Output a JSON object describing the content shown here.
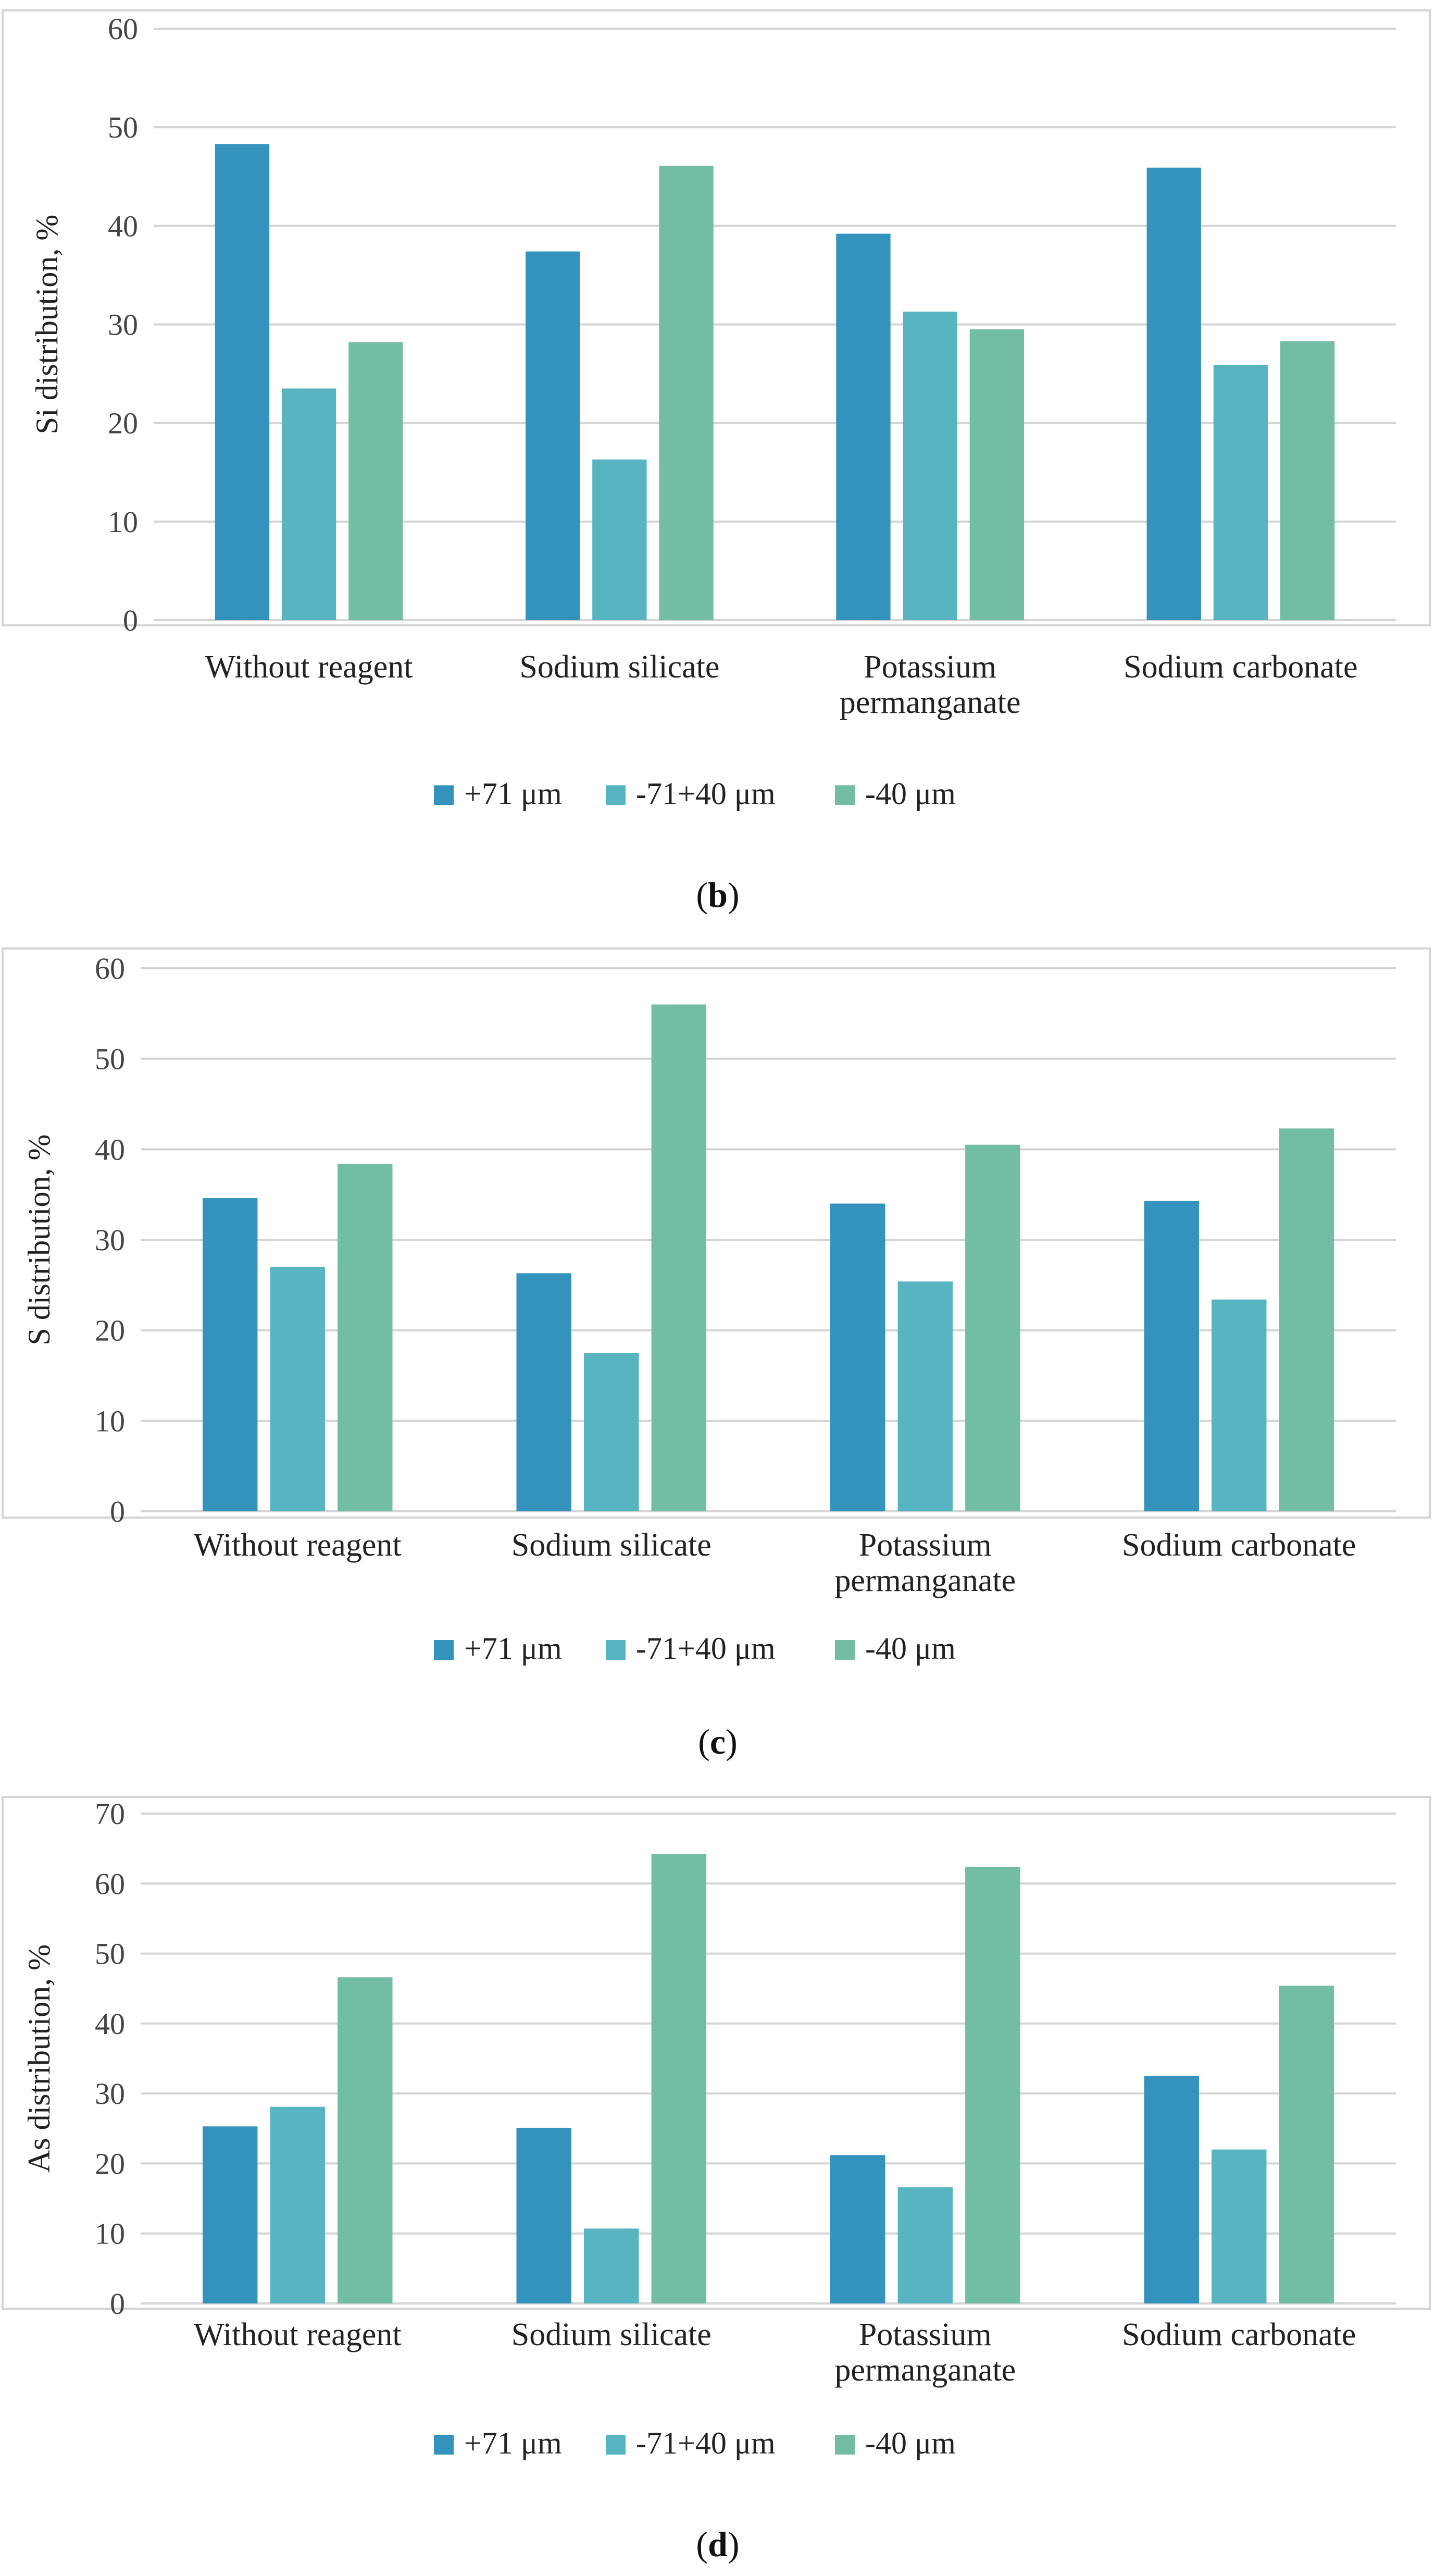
{
  "colors": {
    "s1": "#3493bd",
    "s2": "#59b4c1",
    "s3": "#74bda5"
  },
  "chart_data": [
    {
      "type": "bar",
      "panel": "b",
      "title": "",
      "xlabel": "",
      "ylabel": "Si distribution, %",
      "ylim": [
        0,
        60
      ],
      "yticks": [
        "0",
        "10",
        "20",
        "30",
        "40",
        "50",
        "60"
      ],
      "categories": [
        [
          "Without reagent"
        ],
        [
          "Sodium silicate"
        ],
        [
          "Potassium",
          "permanganate"
        ],
        [
          "Sodium carbonate"
        ]
      ],
      "series": [
        {
          "name": "+71 μm",
          "values": [
            48.3,
            37.4,
            39.2,
            45.9
          ]
        },
        {
          "name": "-71+40 μm",
          "values": [
            23.5,
            16.3,
            31.3,
            25.9
          ]
        },
        {
          "name": "-40 μm",
          "values": [
            28.2,
            46.1,
            29.5,
            28.3
          ]
        }
      ],
      "legend": "bottom"
    },
    {
      "type": "bar",
      "panel": "c",
      "title": "",
      "xlabel": "",
      "ylabel": "S distribution, %",
      "ylim": [
        0,
        60
      ],
      "yticks": [
        "0",
        "10",
        "20",
        "30",
        "40",
        "50",
        "60"
      ],
      "categories": [
        [
          "Without reagent"
        ],
        [
          "Sodium silicate"
        ],
        [
          "Potassium",
          "permanganate"
        ],
        [
          "Sodium carbonate"
        ]
      ],
      "series": [
        {
          "name": "+71 μm",
          "values": [
            34.6,
            26.3,
            34.0,
            34.3
          ]
        },
        {
          "name": "-71+40 μm",
          "values": [
            27.0,
            17.5,
            25.4,
            23.4
          ]
        },
        {
          "name": "-40 μm",
          "values": [
            38.4,
            56.0,
            40.5,
            42.3
          ]
        }
      ],
      "legend": "bottom"
    },
    {
      "type": "bar",
      "panel": "d",
      "title": "",
      "xlabel": "",
      "ylabel": "As distribution, %",
      "ylim": [
        0,
        70
      ],
      "yticks": [
        "0",
        "10",
        "20",
        "30",
        "40",
        "50",
        "60",
        "70"
      ],
      "categories": [
        [
          "Without reagent"
        ],
        [
          "Sodium silicate"
        ],
        [
          "Potassium",
          "permanganate"
        ],
        [
          "Sodium carbonate"
        ]
      ],
      "series": [
        {
          "name": "+71 μm",
          "values": [
            25.3,
            25.1,
            21.2,
            32.5
          ]
        },
        {
          "name": "-71+40 μm",
          "values": [
            28.1,
            10.7,
            16.6,
            22.0
          ]
        },
        {
          "name": "-40 μm",
          "values": [
            46.6,
            64.2,
            62.4,
            45.4
          ]
        }
      ],
      "legend": "bottom"
    }
  ]
}
